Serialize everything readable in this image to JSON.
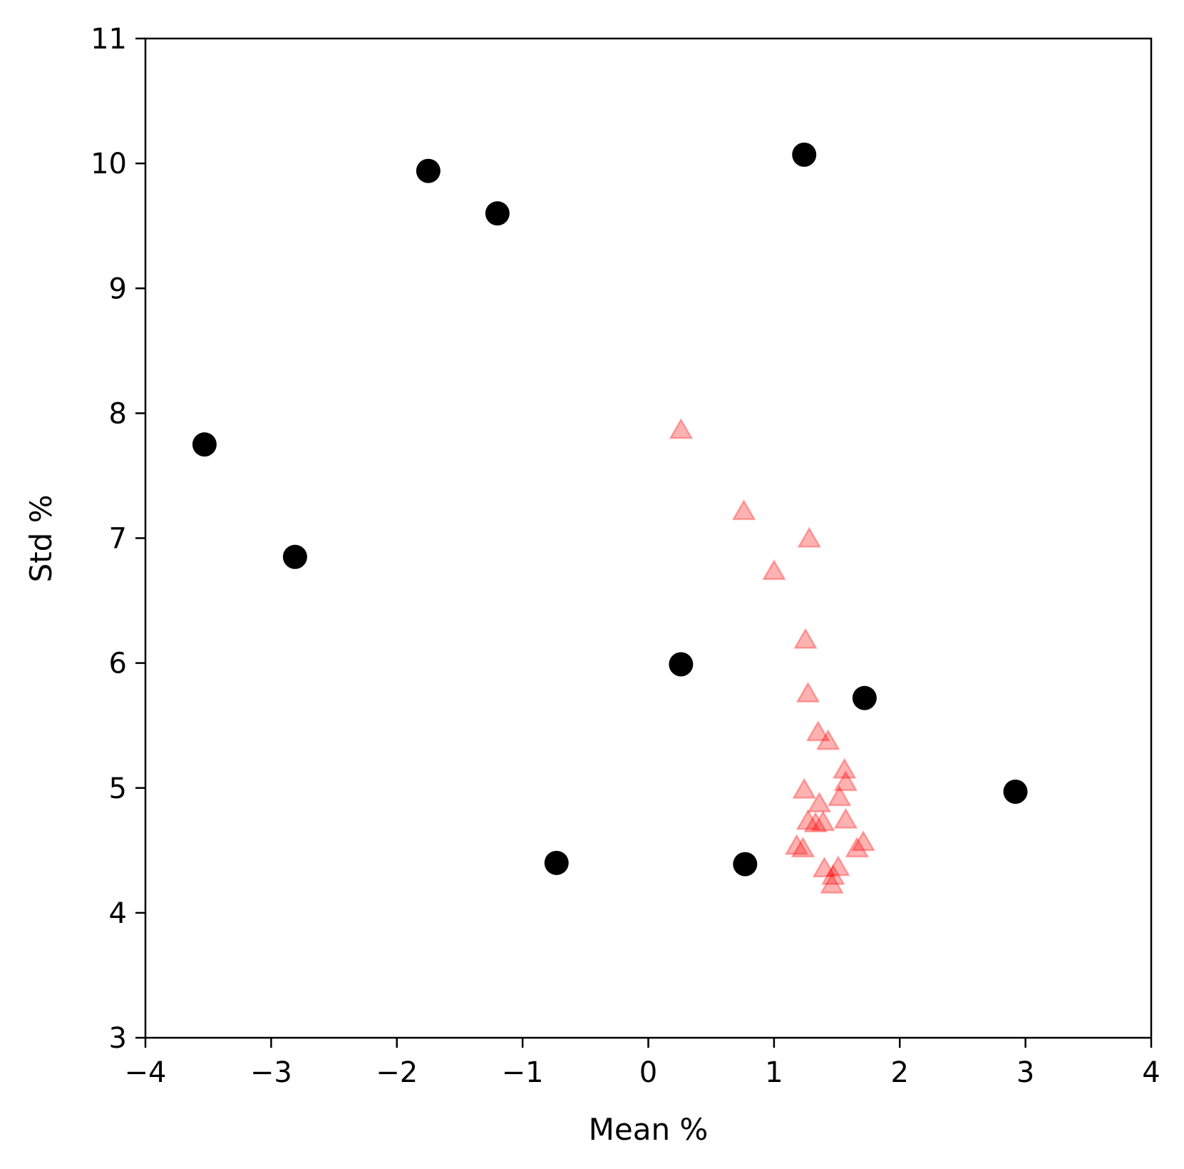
{
  "chart_data": {
    "type": "scatter",
    "title": "",
    "xlabel": "Mean %",
    "ylabel": "Std %",
    "xlim": [
      -4,
      4
    ],
    "ylim": [
      3,
      11
    ],
    "grid": false,
    "x_ticks": [
      "−4",
      "−3",
      "−2",
      "−1",
      "0",
      "1",
      "2",
      "3",
      "4"
    ],
    "y_ticks": [
      "3",
      "4",
      "5",
      "6",
      "7",
      "8",
      "9",
      "10",
      "11"
    ],
    "series": [
      {
        "marker": "circle",
        "color": "#000000",
        "points": [
          {
            "x": -3.53,
            "y": 7.75
          },
          {
            "x": -2.81,
            "y": 6.85
          },
          {
            "x": -1.75,
            "y": 9.94
          },
          {
            "x": -1.2,
            "y": 9.6
          },
          {
            "x": -0.73,
            "y": 4.4
          },
          {
            "x": 0.26,
            "y": 5.99
          },
          {
            "x": 0.77,
            "y": 4.39
          },
          {
            "x": 1.24,
            "y": 10.07
          },
          {
            "x": 1.72,
            "y": 5.72
          },
          {
            "x": 2.92,
            "y": 4.97
          }
        ]
      },
      {
        "marker": "triangle",
        "color": "#ff0000",
        "opacity": 0.3,
        "points": [
          {
            "x": 0.26,
            "y": 7.85
          },
          {
            "x": 0.76,
            "y": 7.2
          },
          {
            "x": 1.28,
            "y": 6.98
          },
          {
            "x": 1.0,
            "y": 6.72
          },
          {
            "x": 1.25,
            "y": 6.17
          },
          {
            "x": 1.27,
            "y": 5.74
          },
          {
            "x": 1.35,
            "y": 5.43
          },
          {
            "x": 1.43,
            "y": 5.36
          },
          {
            "x": 1.56,
            "y": 5.13
          },
          {
            "x": 1.57,
            "y": 5.03
          },
          {
            "x": 1.24,
            "y": 4.97
          },
          {
            "x": 1.52,
            "y": 4.91
          },
          {
            "x": 1.36,
            "y": 4.86
          },
          {
            "x": 1.27,
            "y": 4.72
          },
          {
            "x": 1.33,
            "y": 4.7
          },
          {
            "x": 1.39,
            "y": 4.71
          },
          {
            "x": 1.57,
            "y": 4.73
          },
          {
            "x": 1.18,
            "y": 4.52
          },
          {
            "x": 1.23,
            "y": 4.5
          },
          {
            "x": 1.66,
            "y": 4.5
          },
          {
            "x": 1.71,
            "y": 4.55
          },
          {
            "x": 1.4,
            "y": 4.34
          },
          {
            "x": 1.51,
            "y": 4.35
          },
          {
            "x": 1.47,
            "y": 4.28
          },
          {
            "x": 1.46,
            "y": 4.21
          }
        ]
      }
    ]
  }
}
